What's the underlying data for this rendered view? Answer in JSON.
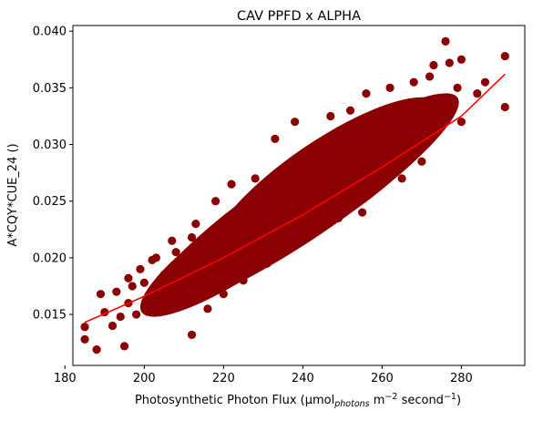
{
  "chart_data": {
    "type": "scatter",
    "title": "CAV PPFD x ALPHA",
    "xlabel": {
      "main": "Photosynthetic Photon Flux (µmol",
      "subscript": "photons",
      "unit_m": " m",
      "exp_m": "−2",
      "unit_s": " second",
      "exp_s": "−1",
      "close": ")"
    },
    "ylabel": "A*CQY*CUE_24 ()",
    "xlim": [
      182,
      296
    ],
    "ylim": [
      0.0105,
      0.0405
    ],
    "xticks": [
      180,
      200,
      220,
      240,
      260,
      280
    ],
    "xtick_labels": [
      "180",
      "200",
      "220",
      "240",
      "260",
      "280"
    ],
    "yticks": [
      0.015,
      0.02,
      0.025,
      0.03,
      0.035,
      0.04
    ],
    "ytick_labels": [
      "0.015",
      "0.020",
      "0.025",
      "0.030",
      "0.035",
      "0.040"
    ],
    "grid": false,
    "scatter_color": "#8b0000",
    "fit_color": "#ff0000",
    "fit_line": {
      "x": [
        185,
        200,
        220,
        240,
        260,
        280,
        291
      ],
      "y": [
        0.0143,
        0.0166,
        0.02,
        0.0238,
        0.028,
        0.0325,
        0.0362
      ]
    },
    "series": [
      {
        "name": "observations",
        "x": [
          185,
          185,
          188,
          189,
          190,
          192,
          193,
          194,
          195,
          196,
          197,
          198,
          199,
          200,
          201,
          203,
          205,
          207,
          212,
          213,
          216,
          218,
          220,
          222,
          225,
          228,
          231,
          233,
          236,
          238,
          238,
          241,
          243,
          247,
          249,
          250,
          252,
          255,
          256,
          258,
          261,
          262,
          265,
          266,
          268,
          270,
          272,
          273,
          275,
          276,
          277,
          279,
          280,
          284,
          286,
          291,
          291,
          196,
          212,
          222,
          228,
          235,
          242,
          250,
          258,
          266,
          272,
          280,
          202,
          208,
          214,
          226,
          232,
          244,
          254,
          262,
          270
        ],
        "y": [
          0.0139,
          0.0128,
          0.0119,
          0.0168,
          0.0152,
          0.014,
          0.017,
          0.0148,
          0.0122,
          0.016,
          0.0175,
          0.015,
          0.019,
          0.0178,
          0.016,
          0.02,
          0.0185,
          0.0215,
          0.0132,
          0.023,
          0.0155,
          0.025,
          0.0168,
          0.0265,
          0.018,
          0.027,
          0.0195,
          0.0305,
          0.0207,
          0.028,
          0.032,
          0.022,
          0.0298,
          0.0325,
          0.0235,
          0.031,
          0.033,
          0.024,
          0.0345,
          0.026,
          0.03,
          0.035,
          0.027,
          0.033,
          0.0355,
          0.0285,
          0.036,
          0.037,
          0.033,
          0.0391,
          0.0372,
          0.035,
          0.0375,
          0.0345,
          0.0355,
          0.0378,
          0.0333,
          0.0182,
          0.0218,
          0.023,
          0.0245,
          0.0255,
          0.0268,
          0.028,
          0.029,
          0.03,
          0.031,
          0.032,
          0.0198,
          0.0205,
          0.0212,
          0.024,
          0.025,
          0.0262,
          0.0275,
          0.0288,
          0.0298
        ]
      }
    ]
  }
}
